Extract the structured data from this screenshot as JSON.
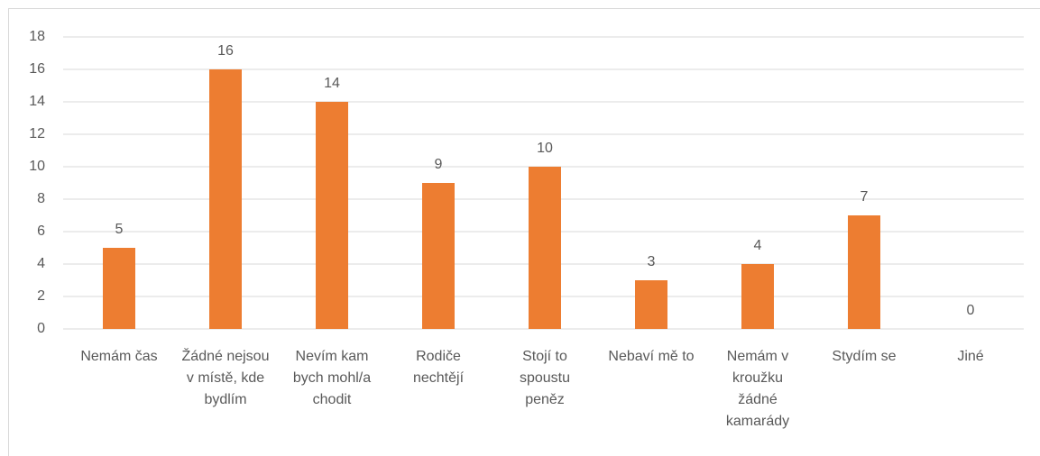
{
  "chart_data": {
    "type": "bar",
    "categories": [
      "Nemám čas",
      "Žádné nejsou v místě, kde bydlím",
      "Nevím kam bych mohl/a chodit",
      "Rodiče nechtějí",
      "Stojí to spoustu peněz",
      "Nebaví mě to",
      "Nemám v kroužku žádné kamarády",
      "Stydím se",
      "Jiné"
    ],
    "values": [
      5,
      16,
      14,
      9,
      10,
      3,
      4,
      7,
      0
    ],
    "color": "#ed7d31",
    "ylim": [
      0,
      18
    ],
    "yticks": [
      0,
      2,
      4,
      6,
      8,
      10,
      12,
      14,
      16,
      18
    ],
    "grid": true
  }
}
